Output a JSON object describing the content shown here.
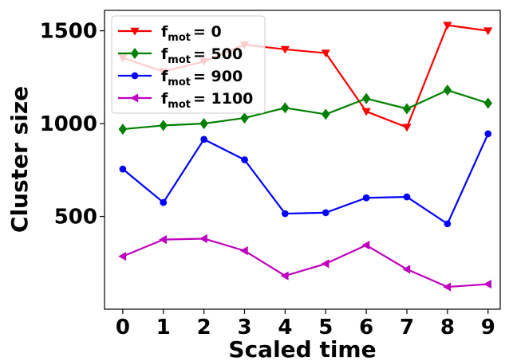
{
  "chart_data": {
    "type": "line",
    "xlabel": "Scaled time",
    "ylabel": "Cluster size",
    "x": [
      0,
      1,
      2,
      3,
      4,
      5,
      6,
      7,
      8,
      9
    ],
    "xlim": [
      -0.45,
      9.3
    ],
    "ylim": [
      0,
      1610
    ],
    "xticks": [
      "0",
      "1",
      "2",
      "3",
      "4",
      "5",
      "6",
      "7",
      "8",
      "9"
    ],
    "yticks": [
      500,
      1000,
      1500
    ],
    "grid": false,
    "legend_position": "top-left",
    "series": [
      {
        "name_main": "f",
        "name_sub": "mot",
        "name_value": "= 0",
        "color": "#ff0000",
        "marker": "triangle-down",
        "values": [
          1355,
          1280,
          1335,
          1425,
          1400,
          1380,
          1065,
          980,
          1530,
          1500
        ]
      },
      {
        "name_main": "f",
        "name_sub": "mot",
        "name_value": "= 500",
        "color": "#008000",
        "marker": "diamond",
        "values": [
          970,
          990,
          1000,
          1030,
          1085,
          1050,
          1135,
          1080,
          1180,
          1110
        ]
      },
      {
        "name_main": "f",
        "name_sub": "mot",
        "name_value": "= 900",
        "color": "#0000ff",
        "marker": "circle",
        "values": [
          755,
          575,
          915,
          805,
          515,
          520,
          600,
          605,
          460,
          945
        ]
      },
      {
        "name_main": "f",
        "name_sub": "mot",
        "name_value": "= 1100",
        "color": "#bf00bf",
        "marker": "triangle-left",
        "values": [
          285,
          375,
          380,
          315,
          180,
          245,
          345,
          215,
          120,
          135
        ]
      }
    ]
  }
}
